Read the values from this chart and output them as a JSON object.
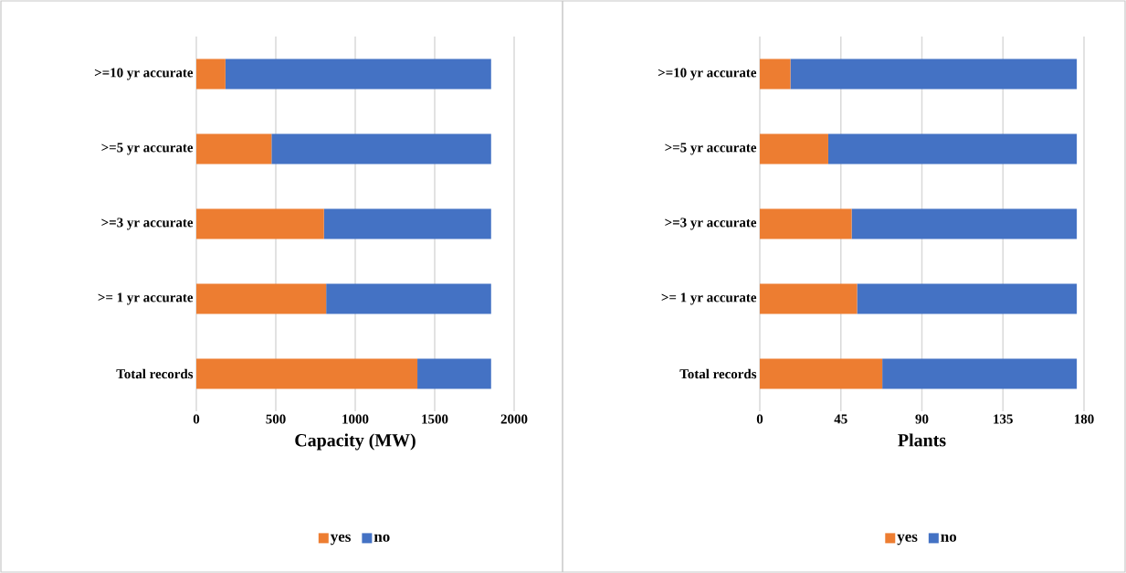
{
  "chart_data": [
    {
      "type": "bar",
      "orientation": "horizontal",
      "stacked": true,
      "xlabel": "Capacity (MW)",
      "categories": [
        ">=10 yr accurate",
        ">=5 yr accurate",
        ">=3 yr accurate",
        ">= 1 yr accurate",
        "Total records"
      ],
      "series": [
        {
          "name": "yes",
          "color": "#ed7d31",
          "values": [
            183,
            473,
            803,
            817,
            1391
          ]
        },
        {
          "name": "no",
          "color": "#4472c4",
          "values": [
            1672,
            1382,
            1052,
            1038,
            464
          ]
        }
      ],
      "xlim": [
        0,
        2000
      ],
      "xticks": [
        0,
        500,
        1000,
        1500,
        2000
      ],
      "grid": "x",
      "legend": "bottom"
    },
    {
      "type": "bar",
      "orientation": "horizontal",
      "stacked": true,
      "xlabel": "Plants",
      "categories": [
        ">=10 yr accurate",
        ">=5 yr accurate",
        ">=3 yr accurate",
        ">= 1 yr accurate",
        "Total records"
      ],
      "series": [
        {
          "name": "yes",
          "color": "#ed7d31",
          "values": [
            17,
            38,
            51,
            54,
            68
          ]
        },
        {
          "name": "no",
          "color": "#4472c4",
          "values": [
            159,
            138,
            125,
            122,
            108
          ]
        }
      ],
      "xlim": [
        0,
        180
      ],
      "xticks": [
        0,
        45,
        90,
        135,
        180
      ],
      "grid": "x",
      "legend": "bottom"
    }
  ]
}
